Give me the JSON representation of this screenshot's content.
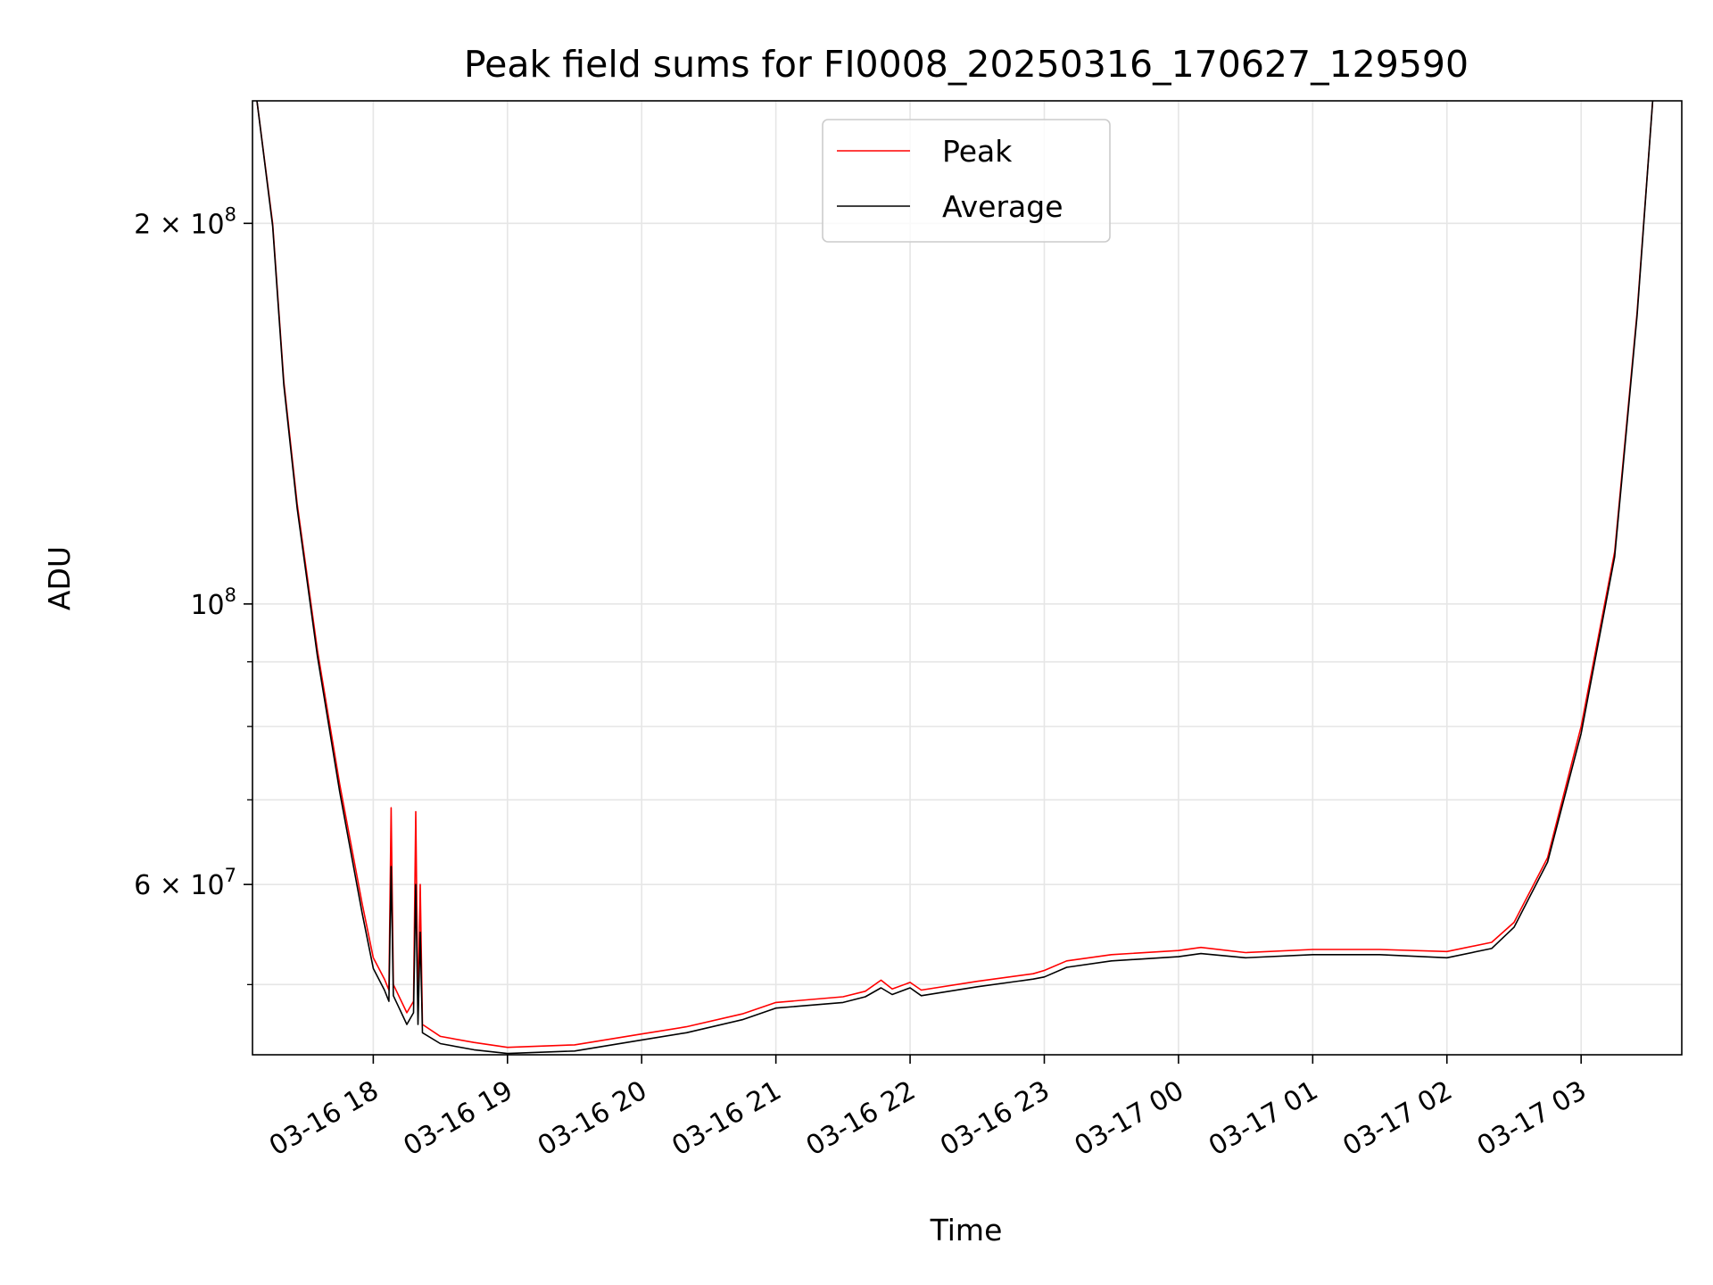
{
  "chart_data": {
    "type": "line",
    "title": "Peak field sums for FI0008_20250316_170627_129590",
    "xlabel": "Time",
    "ylabel": "ADU",
    "yscale": "log",
    "xlim": [
      "2025-03-16T17:06",
      "2025-03-17T03:45"
    ],
    "ylim": [
      44000000,
      250000000
    ],
    "x_ticks": [
      "2025-03-16T18:00",
      "2025-03-16T19:00",
      "2025-03-16T20:00",
      "2025-03-16T21:00",
      "2025-03-16T22:00",
      "2025-03-16T23:00",
      "2025-03-17T00:00",
      "2025-03-17T01:00",
      "2025-03-17T02:00",
      "2025-03-17T03:00"
    ],
    "x_tick_labels": [
      "03-16 18",
      "03-16 19",
      "03-16 20",
      "03-16 21",
      "03-16 22",
      "03-16 23",
      "03-17 00",
      "03-17 01",
      "03-17 02",
      "03-17 03"
    ],
    "y_major_ticks": [
      {
        "value": 200000000,
        "label": "2 × 10^8",
        "mantissa": "2",
        "exp": "8"
      },
      {
        "value": 100000000,
        "label": "10^8",
        "mantissa": "",
        "exp": "8"
      },
      {
        "value": 60000000,
        "label": "6 × 10^7",
        "mantissa": "6",
        "exp": "7"
      }
    ],
    "y_minor_ticks": [
      50000000,
      70000000,
      80000000,
      90000000
    ],
    "grid": true,
    "legend": {
      "position": "upper-center"
    },
    "series": [
      {
        "name": "Peak",
        "color": "#ff0000",
        "x": [
          "2025-03-16T17:08",
          "2025-03-16T17:15",
          "2025-03-16T17:20",
          "2025-03-16T17:26",
          "2025-03-16T17:35",
          "2025-03-16T17:45",
          "2025-03-16T17:55",
          "2025-03-16T18:00",
          "2025-03-16T18:05",
          "2025-03-16T18:07",
          "2025-03-16T18:08",
          "2025-03-16T18:09",
          "2025-03-16T18:15",
          "2025-03-16T18:18",
          "2025-03-16T18:19",
          "2025-03-16T18:20",
          "2025-03-16T18:21",
          "2025-03-16T18:22",
          "2025-03-16T18:30",
          "2025-03-16T18:45",
          "2025-03-16T19:00",
          "2025-03-16T19:30",
          "2025-03-16T20:00",
          "2025-03-16T20:20",
          "2025-03-16T20:45",
          "2025-03-16T21:00",
          "2025-03-16T21:30",
          "2025-03-16T21:40",
          "2025-03-16T21:47",
          "2025-03-16T21:52",
          "2025-03-16T22:00",
          "2025-03-16T22:05",
          "2025-03-16T22:30",
          "2025-03-16T22:55",
          "2025-03-16T23:00",
          "2025-03-16T23:10",
          "2025-03-16T23:30",
          "2025-03-17T00:00",
          "2025-03-17T00:10",
          "2025-03-17T00:30",
          "2025-03-17T01:00",
          "2025-03-17T01:30",
          "2025-03-17T02:00",
          "2025-03-17T02:20",
          "2025-03-17T02:30",
          "2025-03-17T02:45",
          "2025-03-17T03:00",
          "2025-03-17T03:15",
          "2025-03-17T03:25",
          "2025-03-17T03:32"
        ],
        "y": [
          250000000,
          200000000,
          150000000,
          120000000,
          92000000,
          72000000,
          58000000,
          52500000,
          50500000,
          49500000,
          69000000,
          50000000,
          47500000,
          48500000,
          68500000,
          47500000,
          60000000,
          46500000,
          45500000,
          45000000,
          44600000,
          44800000,
          45700000,
          46300000,
          47400000,
          48400000,
          48900000,
          49400000,
          50400000,
          49600000,
          50200000,
          49500000,
          50300000,
          51000000,
          51300000,
          52200000,
          52800000,
          53200000,
          53500000,
          53000000,
          53300000,
          53300000,
          53100000,
          54000000,
          56000000,
          63000000,
          80000000,
          110000000,
          170000000,
          250000000
        ]
      },
      {
        "name": "Average",
        "color": "#000000",
        "x": [
          "2025-03-16T17:08",
          "2025-03-16T17:15",
          "2025-03-16T17:20",
          "2025-03-16T17:26",
          "2025-03-16T17:35",
          "2025-03-16T17:45",
          "2025-03-16T17:55",
          "2025-03-16T18:00",
          "2025-03-16T18:05",
          "2025-03-16T18:07",
          "2025-03-16T18:08",
          "2025-03-16T18:09",
          "2025-03-16T18:15",
          "2025-03-16T18:18",
          "2025-03-16T18:19",
          "2025-03-16T18:20",
          "2025-03-16T18:21",
          "2025-03-16T18:22",
          "2025-03-16T18:30",
          "2025-03-16T18:45",
          "2025-03-16T19:00",
          "2025-03-16T19:30",
          "2025-03-16T20:00",
          "2025-03-16T20:20",
          "2025-03-16T20:45",
          "2025-03-16T21:00",
          "2025-03-16T21:30",
          "2025-03-16T21:40",
          "2025-03-16T21:47",
          "2025-03-16T21:52",
          "2025-03-16T22:00",
          "2025-03-16T22:05",
          "2025-03-16T22:30",
          "2025-03-16T22:55",
          "2025-03-16T23:00",
          "2025-03-16T23:10",
          "2025-03-16T23:30",
          "2025-03-17T00:00",
          "2025-03-17T00:10",
          "2025-03-17T00:30",
          "2025-03-17T01:00",
          "2025-03-17T01:30",
          "2025-03-17T02:00",
          "2025-03-17T02:20",
          "2025-03-17T02:30",
          "2025-03-17T02:45",
          "2025-03-17T03:00",
          "2025-03-17T03:15",
          "2025-03-17T03:25",
          "2025-03-17T03:32"
        ],
        "y": [
          250000000,
          199000000,
          149000000,
          119000000,
          91000000,
          71000000,
          57000000,
          51500000,
          49500000,
          48500000,
          62000000,
          49000000,
          46500000,
          47500000,
          60000000,
          46500000,
          55000000,
          45800000,
          44900000,
          44400000,
          44100000,
          44300000,
          45200000,
          45800000,
          46900000,
          47900000,
          48400000,
          48900000,
          49700000,
          49100000,
          49700000,
          49000000,
          49800000,
          50500000,
          50700000,
          51600000,
          52200000,
          52600000,
          52900000,
          52500000,
          52800000,
          52800000,
          52500000,
          53400000,
          55500000,
          62500000,
          79000000,
          109000000,
          169000000,
          250000000
        ]
      }
    ]
  }
}
